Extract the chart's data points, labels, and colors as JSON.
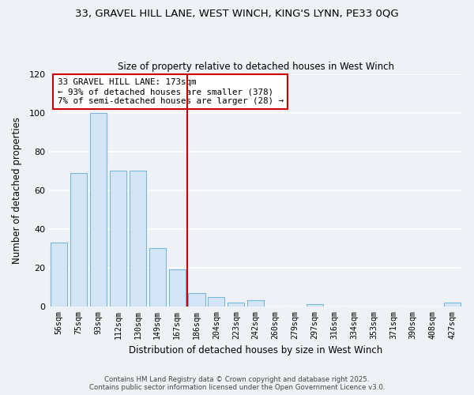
{
  "title_line1": "33, GRAVEL HILL LANE, WEST WINCH, KING'S LYNN, PE33 0QG",
  "title_line2": "Size of property relative to detached houses in West Winch",
  "xlabel": "Distribution of detached houses by size in West Winch",
  "ylabel": "Number of detached properties",
  "bar_labels": [
    "56sqm",
    "75sqm",
    "93sqm",
    "112sqm",
    "130sqm",
    "149sqm",
    "167sqm",
    "186sqm",
    "204sqm",
    "223sqm",
    "242sqm",
    "260sqm",
    "279sqm",
    "297sqm",
    "316sqm",
    "334sqm",
    "353sqm",
    "371sqm",
    "390sqm",
    "408sqm",
    "427sqm"
  ],
  "bar_values": [
    33,
    69,
    100,
    70,
    70,
    30,
    19,
    7,
    5,
    2,
    3,
    0,
    0,
    1,
    0,
    0,
    0,
    0,
    0,
    0,
    2
  ],
  "bar_color": "#d4e6f5",
  "bar_edge_color": "#7ab8d9",
  "vline_color": "#cc0000",
  "annotation_title": "33 GRAVEL HILL LANE: 173sqm",
  "annotation_line1": "← 93% of detached houses are smaller (378)",
  "annotation_line2": "7% of semi-detached houses are larger (28) →",
  "annotation_box_color": "white",
  "annotation_box_edge": "#cc0000",
  "ylim": [
    0,
    120
  ],
  "yticks": [
    0,
    20,
    40,
    60,
    80,
    100,
    120
  ],
  "footnote1": "Contains HM Land Registry data © Crown copyright and database right 2025.",
  "footnote2": "Contains public sector information licensed under the Open Government Licence v3.0.",
  "bg_color": "#eef2f7"
}
